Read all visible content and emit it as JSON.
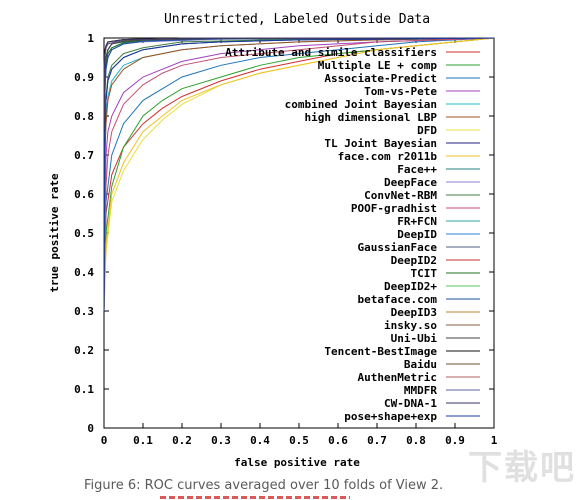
{
  "chart_data": {
    "type": "line",
    "title": "Unrestricted, Labeled Outside Data",
    "xlabel": "false positive rate",
    "ylabel": "true positive rate",
    "xlim": [
      0,
      1
    ],
    "ylim": [
      0,
      1
    ],
    "x_ticks": [
      "0",
      "0.1",
      "0.2",
      "0.3",
      "0.4",
      "0.5",
      "0.6",
      "0.7",
      "0.8",
      "0.9",
      "1"
    ],
    "y_ticks": [
      "0",
      "0.1",
      "0.2",
      "0.3",
      "0.4",
      "0.5",
      "0.6",
      "0.7",
      "0.8",
      "0.9",
      "1"
    ],
    "grid": false,
    "legend_position": "top-right",
    "series": [
      {
        "name": "Attribute and simile classifiers",
        "color": "#d03030",
        "x": [
          0,
          0.005,
          0.02,
          0.05,
          0.1,
          0.15,
          0.2,
          0.3,
          0.4,
          0.5,
          0.6,
          0.7,
          0.8,
          0.9,
          1
        ],
        "y": [
          0.3,
          0.55,
          0.65,
          0.72,
          0.78,
          0.82,
          0.85,
          0.89,
          0.92,
          0.94,
          0.96,
          0.97,
          0.98,
          0.99,
          1
        ]
      },
      {
        "name": "Multiple LE + comp",
        "color": "#2da02d",
        "x": [
          0,
          0.005,
          0.02,
          0.05,
          0.1,
          0.15,
          0.2,
          0.3,
          0.4,
          0.5,
          0.6,
          0.7,
          0.8,
          0.9,
          1
        ],
        "y": [
          0.3,
          0.5,
          0.62,
          0.72,
          0.8,
          0.84,
          0.87,
          0.9,
          0.93,
          0.95,
          0.96,
          0.97,
          0.98,
          0.99,
          1
        ]
      },
      {
        "name": "Associate-Predict",
        "color": "#1e72b8",
        "x": [
          0,
          0.005,
          0.02,
          0.05,
          0.1,
          0.15,
          0.2,
          0.3,
          0.4,
          0.5,
          0.6,
          0.7,
          0.8,
          0.9,
          1
        ],
        "y": [
          0.3,
          0.58,
          0.7,
          0.78,
          0.84,
          0.87,
          0.9,
          0.93,
          0.95,
          0.96,
          0.97,
          0.98,
          0.99,
          0.995,
          1
        ]
      },
      {
        "name": "Tom-vs-Pete",
        "color": "#a040c0",
        "x": [
          0,
          0.005,
          0.01,
          0.02,
          0.05,
          0.1,
          0.15,
          0.2,
          0.3,
          0.5,
          0.7,
          1
        ],
        "y": [
          0.3,
          0.7,
          0.76,
          0.8,
          0.86,
          0.9,
          0.92,
          0.94,
          0.96,
          0.98,
          0.99,
          1
        ]
      },
      {
        "name": "combined Joint Bayesian",
        "color": "#20b8c8",
        "x": [
          0,
          0.002,
          0.005,
          0.01,
          0.02,
          0.05,
          0.1,
          0.2,
          0.3,
          0.5,
          0.7,
          1
        ],
        "y": [
          0.3,
          0.7,
          0.8,
          0.85,
          0.89,
          0.93,
          0.95,
          0.97,
          0.98,
          0.99,
          0.995,
          1
        ]
      },
      {
        "name": "high dimensional LBP",
        "color": "#a05020",
        "x": [
          0,
          0.002,
          0.005,
          0.01,
          0.02,
          0.05,
          0.1,
          0.2,
          0.3,
          0.5,
          0.7,
          1
        ],
        "y": [
          0.3,
          0.68,
          0.78,
          0.84,
          0.88,
          0.92,
          0.95,
          0.97,
          0.98,
          0.99,
          0.995,
          1
        ]
      },
      {
        "name": "DFD",
        "color": "#e8e040",
        "x": [
          0,
          0.005,
          0.02,
          0.05,
          0.1,
          0.15,
          0.2,
          0.3,
          0.4,
          0.5,
          0.6,
          0.7,
          0.8,
          0.9,
          1
        ],
        "y": [
          0.3,
          0.45,
          0.58,
          0.66,
          0.74,
          0.79,
          0.83,
          0.88,
          0.91,
          0.93,
          0.95,
          0.97,
          0.98,
          0.99,
          1
        ]
      },
      {
        "name": "TL Joint Bayesian",
        "color": "#202080",
        "x": [
          0,
          0.002,
          0.005,
          0.01,
          0.02,
          0.05,
          0.1,
          0.2,
          0.3,
          0.5,
          1
        ],
        "y": [
          0.3,
          0.75,
          0.84,
          0.89,
          0.92,
          0.95,
          0.97,
          0.985,
          0.99,
          0.995,
          1
        ]
      },
      {
        "name": "face.com r2011b",
        "color": "#f0c020",
        "x": [
          0,
          0.005,
          0.02,
          0.05,
          0.1,
          0.15,
          0.2,
          0.3,
          0.4,
          0.5,
          0.6,
          0.7,
          0.8,
          0.9,
          1
        ],
        "y": [
          0.3,
          0.47,
          0.6,
          0.68,
          0.76,
          0.8,
          0.84,
          0.88,
          0.91,
          0.93,
          0.95,
          0.97,
          0.98,
          0.99,
          1
        ]
      },
      {
        "name": "Face++",
        "color": "#208080",
        "x": [
          0,
          0.001,
          0.003,
          0.005,
          0.01,
          0.02,
          0.05,
          0.1,
          0.3,
          1
        ],
        "y": [
          0.3,
          0.85,
          0.92,
          0.95,
          0.97,
          0.985,
          0.99,
          0.995,
          0.999,
          1
        ]
      },
      {
        "name": "DeepFace",
        "color": "#9080d0",
        "x": [
          0,
          0.001,
          0.003,
          0.005,
          0.01,
          0.02,
          0.05,
          0.1,
          0.3,
          1
        ],
        "y": [
          0.3,
          0.8,
          0.88,
          0.92,
          0.95,
          0.97,
          0.985,
          0.99,
          0.997,
          1
        ]
      },
      {
        "name": "ConvNet-RBM",
        "color": "#408040",
        "x": [
          0,
          0.002,
          0.005,
          0.01,
          0.02,
          0.05,
          0.1,
          0.2,
          0.5,
          1
        ],
        "y": [
          0.3,
          0.76,
          0.85,
          0.9,
          0.93,
          0.96,
          0.975,
          0.99,
          0.997,
          1
        ]
      },
      {
        "name": "POOF-gradhist",
        "color": "#c05070",
        "x": [
          0,
          0.005,
          0.01,
          0.02,
          0.05,
          0.1,
          0.15,
          0.2,
          0.3,
          0.5,
          0.7,
          1
        ],
        "y": [
          0.3,
          0.62,
          0.7,
          0.76,
          0.83,
          0.88,
          0.91,
          0.93,
          0.95,
          0.97,
          0.99,
          1
        ]
      },
      {
        "name": "FR+FCN",
        "color": "#30a0a0",
        "x": [
          0,
          0.001,
          0.003,
          0.005,
          0.01,
          0.02,
          0.05,
          0.1,
          0.3,
          1
        ],
        "y": [
          0.3,
          0.82,
          0.9,
          0.93,
          0.96,
          0.975,
          0.988,
          0.994,
          0.998,
          1
        ]
      },
      {
        "name": "DeepID",
        "color": "#3080d0",
        "x": [
          0,
          0.001,
          0.003,
          0.005,
          0.01,
          0.02,
          0.05,
          0.1,
          0.3,
          1
        ],
        "y": [
          0.3,
          0.8,
          0.88,
          0.92,
          0.95,
          0.97,
          0.985,
          0.992,
          0.998,
          1
        ]
      },
      {
        "name": "GaussianFace",
        "color": "#506080",
        "x": [
          0,
          0.001,
          0.003,
          0.005,
          0.01,
          0.02,
          0.05,
          0.1,
          0.3,
          1
        ],
        "y": [
          0.3,
          0.84,
          0.92,
          0.95,
          0.97,
          0.985,
          0.992,
          0.996,
          0.999,
          1
        ]
      },
      {
        "name": "DeepID2",
        "color": "#c03030",
        "x": [
          0,
          0.0005,
          0.001,
          0.003,
          0.005,
          0.01,
          0.05,
          0.2,
          1
        ],
        "y": [
          0.3,
          0.88,
          0.93,
          0.96,
          0.975,
          0.985,
          0.995,
          0.999,
          1
        ]
      },
      {
        "name": "TCIT",
        "color": "#207020",
        "x": [
          0,
          0.001,
          0.003,
          0.005,
          0.01,
          0.02,
          0.05,
          0.1,
          0.3,
          1
        ],
        "y": [
          0.3,
          0.82,
          0.9,
          0.93,
          0.96,
          0.975,
          0.988,
          0.994,
          0.998,
          1
        ]
      },
      {
        "name": "DeepID2+",
        "color": "#60c060",
        "x": [
          0,
          0.0005,
          0.001,
          0.003,
          0.005,
          0.01,
          0.05,
          0.2,
          1
        ],
        "y": [
          0.3,
          0.9,
          0.94,
          0.97,
          0.98,
          0.99,
          0.996,
          0.999,
          1
        ]
      },
      {
        "name": "betaface.com",
        "color": "#2050a0",
        "x": [
          0,
          0.001,
          0.003,
          0.005,
          0.01,
          0.02,
          0.05,
          0.1,
          0.3,
          1
        ],
        "y": [
          0.3,
          0.8,
          0.88,
          0.92,
          0.95,
          0.97,
          0.985,
          0.992,
          0.998,
          1
        ]
      },
      {
        "name": "DeepID3",
        "color": "#c08030",
        "x": [
          0,
          0.0005,
          0.001,
          0.003,
          0.005,
          0.01,
          0.05,
          0.2,
          1
        ],
        "y": [
          0.3,
          0.9,
          0.94,
          0.97,
          0.98,
          0.99,
          0.996,
          0.999,
          1
        ]
      },
      {
        "name": "insky.so",
        "color": "#806040",
        "x": [
          0,
          0.001,
          0.003,
          0.005,
          0.01,
          0.02,
          0.05,
          0.1,
          0.3,
          1
        ],
        "y": [
          0.3,
          0.84,
          0.92,
          0.95,
          0.97,
          0.985,
          0.992,
          0.996,
          0.999,
          1
        ]
      },
      {
        "name": "Uni-Ubi",
        "color": "#404040",
        "x": [
          0,
          0.001,
          0.003,
          0.005,
          0.01,
          0.02,
          0.05,
          0.1,
          0.3,
          1
        ],
        "y": [
          0.3,
          0.84,
          0.92,
          0.95,
          0.97,
          0.985,
          0.992,
          0.996,
          0.999,
          1
        ]
      },
      {
        "name": "Tencent-BestImage",
        "color": "#101010",
        "x": [
          0,
          0.0005,
          0.001,
          0.003,
          0.005,
          0.01,
          0.05,
          0.2,
          1
        ],
        "y": [
          0.3,
          0.9,
          0.94,
          0.97,
          0.98,
          0.99,
          0.996,
          0.999,
          1
        ]
      },
      {
        "name": "Baidu",
        "color": "#705030",
        "x": [
          0,
          0.0005,
          0.001,
          0.003,
          0.005,
          0.01,
          0.05,
          0.2,
          1
        ],
        "y": [
          0.3,
          0.9,
          0.94,
          0.97,
          0.98,
          0.99,
          0.996,
          0.999,
          1
        ]
      },
      {
        "name": "AuthenMetric",
        "color": "#b06060",
        "x": [
          0,
          0.0005,
          0.001,
          0.003,
          0.005,
          0.01,
          0.05,
          0.2,
          1
        ],
        "y": [
          0.3,
          0.88,
          0.93,
          0.96,
          0.975,
          0.985,
          0.995,
          0.999,
          1
        ]
      },
      {
        "name": "MMDFR",
        "color": "#6060a0",
        "x": [
          0,
          0.0005,
          0.001,
          0.003,
          0.005,
          0.01,
          0.05,
          0.2,
          1
        ],
        "y": [
          0.3,
          0.88,
          0.93,
          0.96,
          0.975,
          0.985,
          0.995,
          0.999,
          1
        ]
      },
      {
        "name": "CW-DNA-1",
        "color": "#303060",
        "x": [
          0,
          0.0005,
          0.001,
          0.003,
          0.005,
          0.01,
          0.05,
          0.2,
          1
        ],
        "y": [
          0.3,
          0.9,
          0.94,
          0.97,
          0.98,
          0.99,
          0.996,
          0.999,
          1
        ]
      },
      {
        "name": "pose+shape+exp",
        "color": "#1a3a9a",
        "x": [
          0,
          0.002,
          0.005,
          0.01,
          0.02,
          0.05,
          0.1,
          0.2,
          0.3,
          0.5,
          1
        ],
        "y": [
          0.3,
          0.75,
          0.84,
          0.89,
          0.92,
          0.95,
          0.97,
          0.985,
          0.99,
          0.995,
          1
        ]
      }
    ]
  },
  "caption": "Figure 6: ROC curves averaged over 10 folds of View 2."
}
